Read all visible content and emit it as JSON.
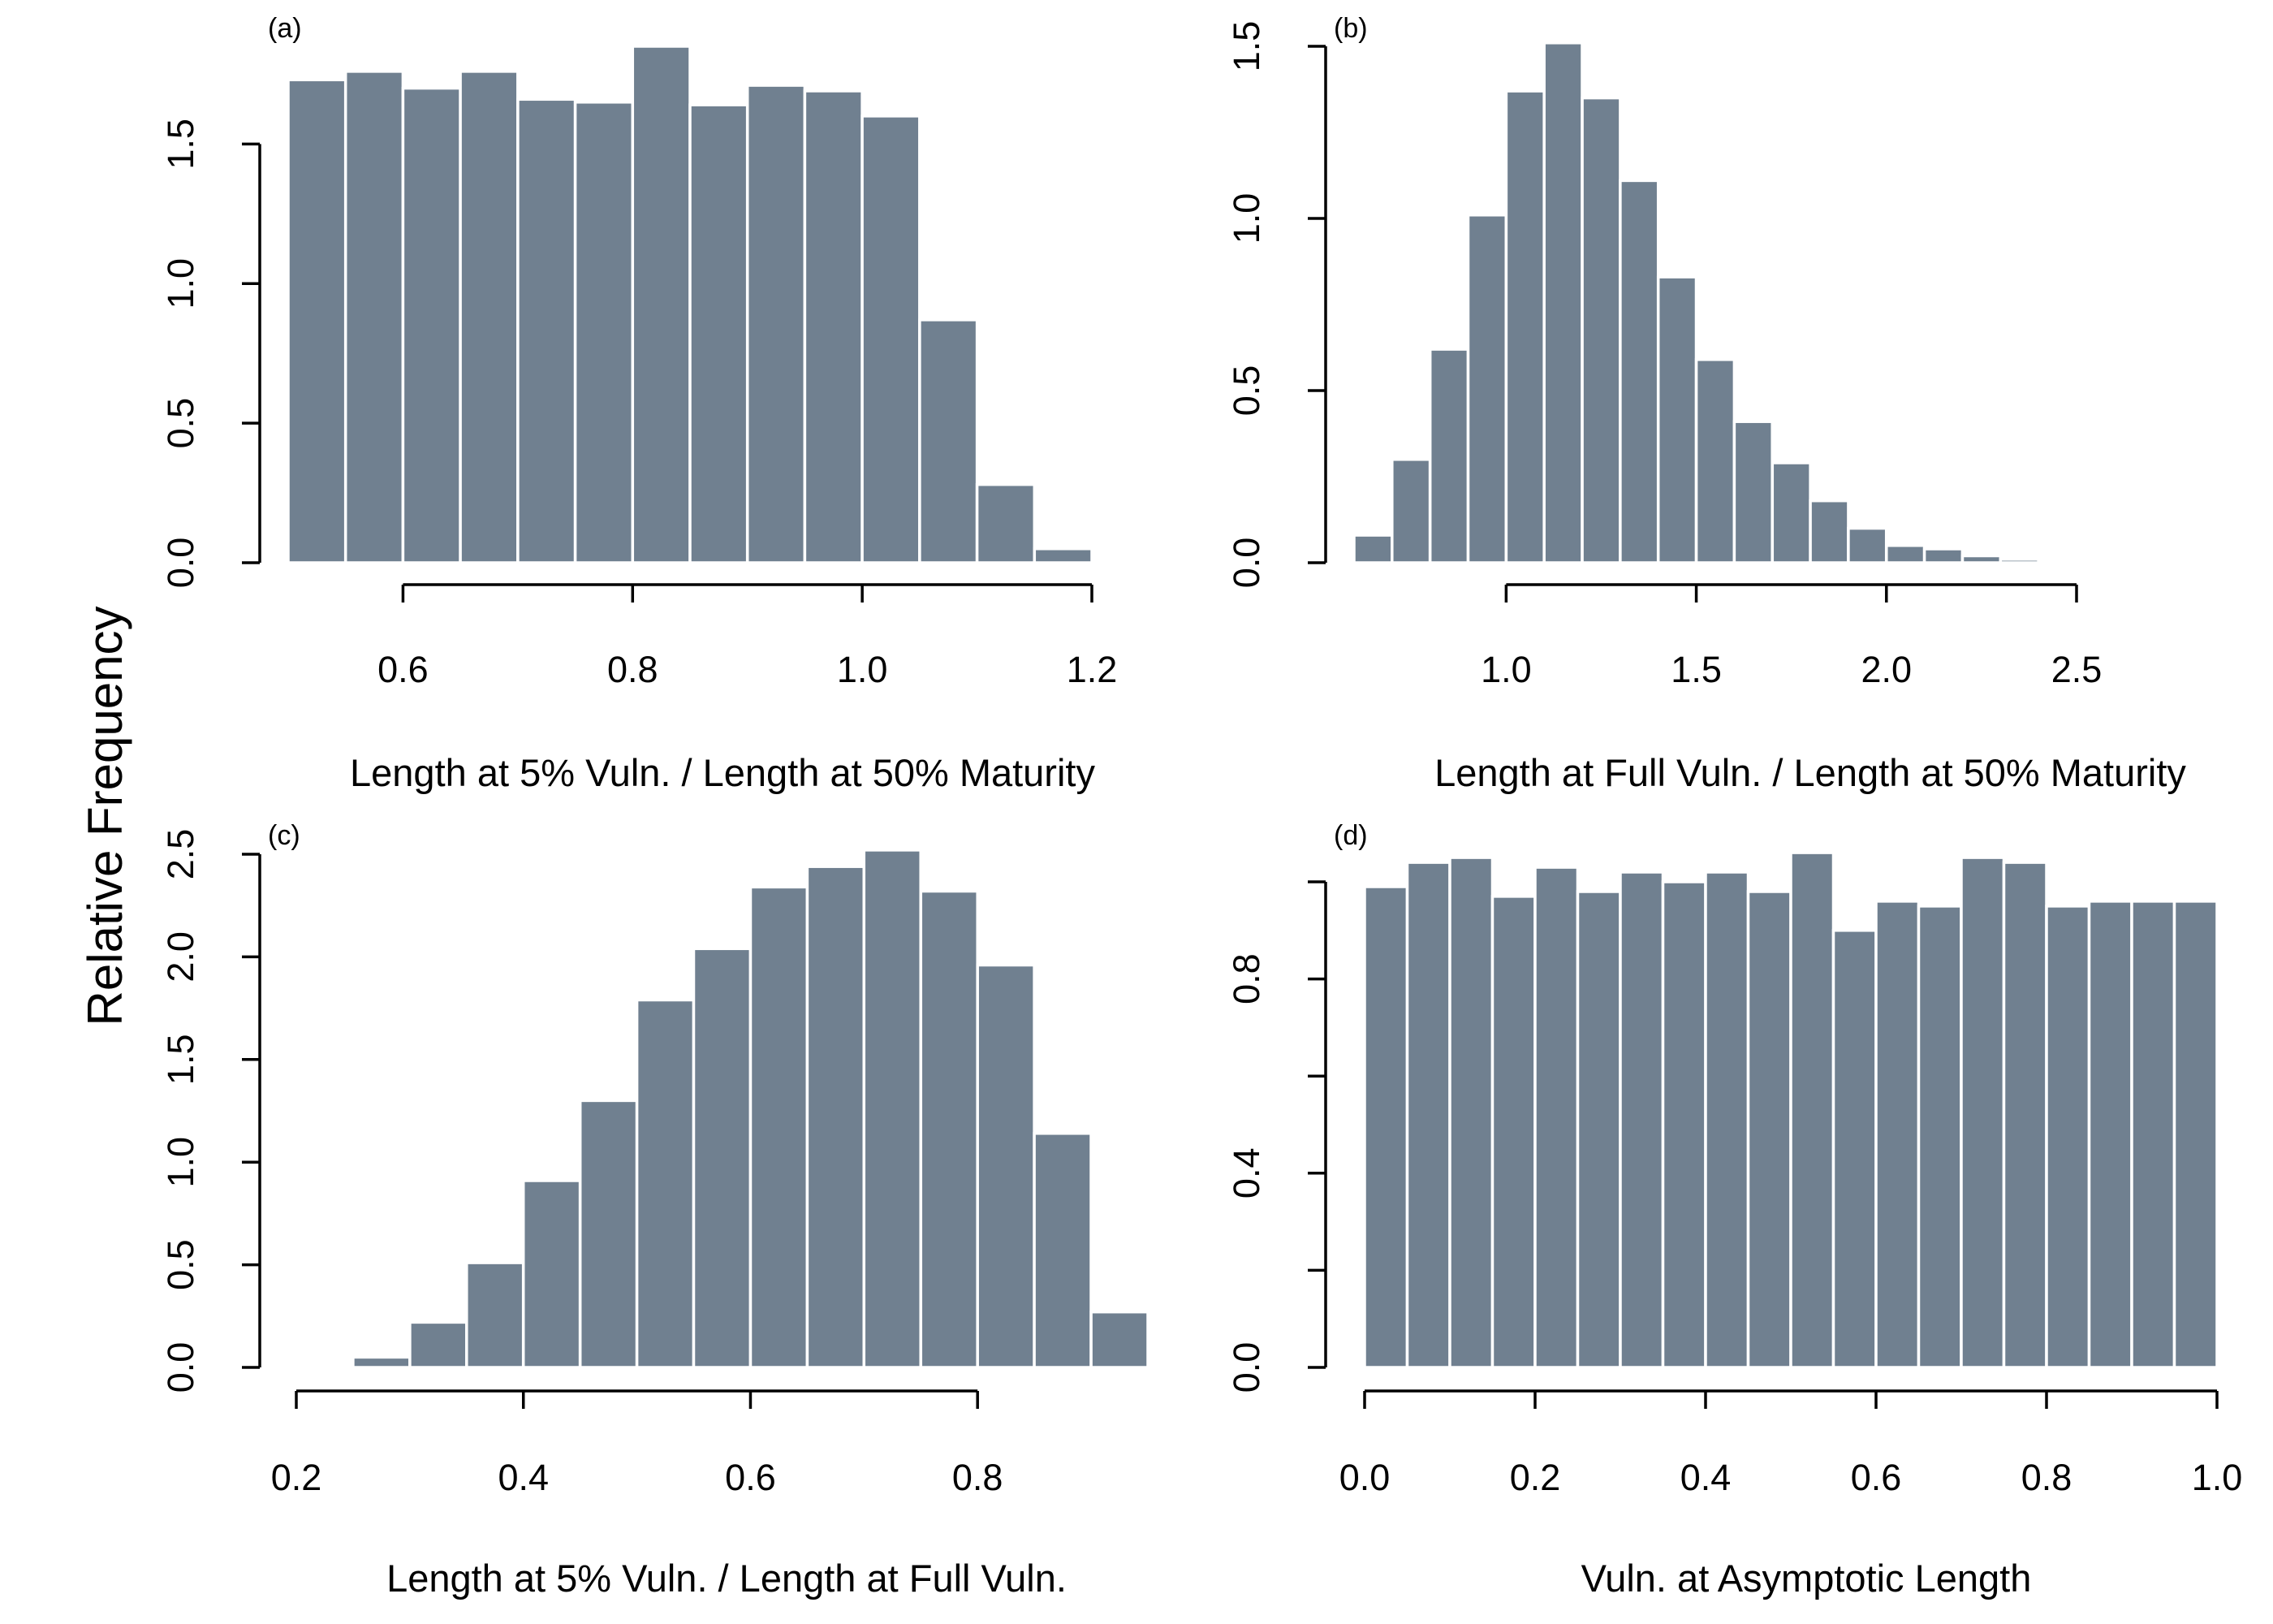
{
  "figure": {
    "ylabel": "Relative Frequency",
    "bar_color": "#708090",
    "bar_edge": "#ffffff"
  },
  "chart_data": [
    {
      "panel_tag": "(a)",
      "type": "bar",
      "title": "",
      "xlabel": "Length at 5% Vuln. / Length at 50% Maturity",
      "ylabel": "",
      "xlim": [
        0.5,
        1.2
      ],
      "ylim": [
        0,
        1.85
      ],
      "xticks": [
        0.6,
        0.8,
        1.0,
        1.2
      ],
      "xtick_labels": [
        "0.6",
        "0.8",
        "1.0",
        "1.2"
      ],
      "yticks": [
        0,
        0.5,
        1.0,
        1.5
      ],
      "ytick_labels": [
        "0.0",
        "0.5",
        "1.0",
        "1.5"
      ],
      "bin_edges": [
        0.5,
        0.55,
        0.6,
        0.65,
        0.7,
        0.75,
        0.8,
        0.85,
        0.9,
        0.95,
        1.0,
        1.05,
        1.1,
        1.15,
        1.2
      ],
      "values": [
        1.73,
        1.76,
        1.7,
        1.76,
        1.66,
        1.65,
        1.85,
        1.64,
        1.71,
        1.69,
        1.6,
        0.87,
        0.28,
        0.05
      ]
    },
    {
      "panel_tag": "(b)",
      "type": "bar",
      "title": "",
      "xlabel": "Length at Full Vuln. / Length at 50% Maturity",
      "ylabel": "",
      "xlim": [
        0.6,
        2.5
      ],
      "ylim": [
        0,
        1.5
      ],
      "xticks": [
        1.0,
        1.5,
        2.0,
        2.5
      ],
      "xtick_labels": [
        "1.0",
        "1.5",
        "2.0",
        "2.5"
      ],
      "yticks": [
        0,
        0.5,
        1.0,
        1.5
      ],
      "ytick_labels": [
        "0.0",
        "0.5",
        "1.0",
        "1.5"
      ],
      "bin_edges": [
        0.6,
        0.7,
        0.8,
        0.9,
        1.0,
        1.1,
        1.2,
        1.3,
        1.4,
        1.5,
        1.6,
        1.7,
        1.8,
        1.9,
        2.0,
        2.1,
        2.2,
        2.3,
        2.4
      ],
      "values": [
        0.08,
        0.3,
        0.62,
        1.01,
        1.37,
        1.51,
        1.35,
        1.11,
        0.83,
        0.59,
        0.41,
        0.29,
        0.18,
        0.1,
        0.05,
        0.04,
        0.02,
        0.01
      ]
    },
    {
      "panel_tag": "(c)",
      "type": "bar",
      "title": "",
      "xlabel": "Length at 5% Vuln. / Length at Full Vuln.",
      "ylabel": "",
      "xlim": [
        0.2,
        0.95
      ],
      "ylim": [
        0,
        2.5
      ],
      "xticks": [
        0.2,
        0.4,
        0.6,
        0.8
      ],
      "xtick_labels": [
        "0.2",
        "0.4",
        "0.6",
        "0.8"
      ],
      "yticks": [
        0,
        0.5,
        1.0,
        1.5,
        2.0,
        2.5
      ],
      "ytick_labels": [
        "0.0",
        "0.5",
        "1.0",
        "1.5",
        "2.0",
        "2.5"
      ],
      "bin_edges": [
        0.25,
        0.3,
        0.35,
        0.4,
        0.45,
        0.5,
        0.55,
        0.6,
        0.65,
        0.7,
        0.75,
        0.8,
        0.85,
        0.9,
        0.95
      ],
      "values": [
        0.05,
        0.22,
        0.51,
        0.91,
        1.3,
        1.79,
        2.04,
        2.34,
        2.44,
        2.52,
        2.32,
        1.96,
        1.14,
        0.27
      ]
    },
    {
      "panel_tag": "(d)",
      "type": "bar",
      "title": "",
      "xlabel": "Vuln. at Asymptotic Length",
      "ylabel": "",
      "xlim": [
        0,
        1.0
      ],
      "ylim": [
        0,
        1.0
      ],
      "xticks": [
        0,
        0.2,
        0.4,
        0.6,
        0.8,
        1.0
      ],
      "xtick_labels": [
        "0.0",
        "0.2",
        "0.4",
        "0.6",
        "0.8",
        "1.0"
      ],
      "yticks": [
        0,
        0.4,
        0.8
      ],
      "ytick_labels": [
        "0.0",
        "0.4",
        "0.8"
      ],
      "yticks_unlabeled": [
        0.2,
        0.6,
        1.0
      ],
      "bin_edges": [
        0,
        0.05,
        0.1,
        0.15,
        0.2,
        0.25,
        0.3,
        0.35,
        0.4,
        0.45,
        0.5,
        0.55,
        0.6,
        0.65,
        0.7,
        0.75,
        0.8,
        0.85,
        0.9,
        0.95,
        1.0
      ],
      "values": [
        0.99,
        1.04,
        1.05,
        0.97,
        1.03,
        0.98,
        1.02,
        1.0,
        1.02,
        0.98,
        1.06,
        0.9,
        0.96,
        0.95,
        1.05,
        1.04,
        0.95,
        0.96,
        0.96,
        0.96
      ]
    }
  ]
}
